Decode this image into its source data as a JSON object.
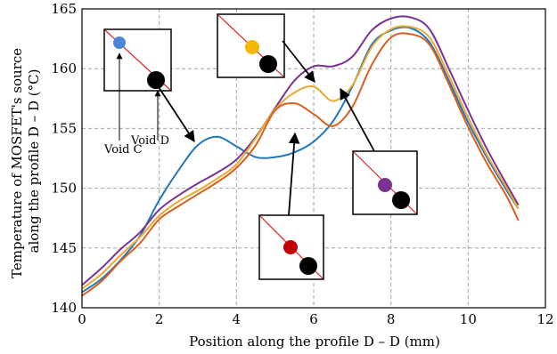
{
  "chart_data": {
    "type": "line",
    "title": "",
    "xlabel": "Position along the profile D – D (mm)",
    "ylabel_lines": [
      "Temperature of MOSFET's source",
      "along the profile D – D (°C)"
    ],
    "xlim": [
      0,
      12
    ],
    "ylim": [
      140,
      165
    ],
    "x_ticks": [
      "0",
      "2",
      "4",
      "6",
      "8",
      "10",
      "12"
    ],
    "y_ticks": [
      "140",
      "145",
      "150",
      "155",
      "160",
      "165"
    ],
    "grid": true,
    "series": [
      {
        "color": "#1f77c0",
        "points": [
          [
            0,
            141.3
          ],
          [
            0.5,
            142.4
          ],
          [
            1,
            144.0
          ],
          [
            1.5,
            146.0
          ],
          [
            2,
            149.0
          ],
          [
            2.5,
            151.5
          ],
          [
            3,
            153.6
          ],
          [
            3.5,
            154.3
          ],
          [
            4,
            153.5
          ],
          [
            4.5,
            152.6
          ],
          [
            5,
            152.6
          ],
          [
            5.5,
            153.0
          ],
          [
            6,
            153.9
          ],
          [
            6.5,
            155.6
          ],
          [
            7,
            158.5
          ],
          [
            7.5,
            162.0
          ],
          [
            8,
            163.2
          ],
          [
            8.5,
            163.4
          ],
          [
            9,
            162.2
          ],
          [
            9.5,
            159.0
          ],
          [
            10,
            155.5
          ],
          [
            10.5,
            152.5
          ],
          [
            11,
            149.8
          ],
          [
            11.3,
            148.3
          ]
        ]
      },
      {
        "color": "#7b3294",
        "points": [
          [
            0,
            141.9
          ],
          [
            0.5,
            143.3
          ],
          [
            1,
            144.9
          ],
          [
            1.5,
            146.3
          ],
          [
            2,
            148.2
          ],
          [
            2.5,
            149.4
          ],
          [
            3,
            150.4
          ],
          [
            3.5,
            151.3
          ],
          [
            4,
            152.4
          ],
          [
            4.5,
            154.3
          ],
          [
            5,
            156.7
          ],
          [
            5.5,
            159.0
          ],
          [
            6,
            160.2
          ],
          [
            6.5,
            160.2
          ],
          [
            7,
            161.0
          ],
          [
            7.5,
            163.2
          ],
          [
            8,
            164.2
          ],
          [
            8.5,
            164.3
          ],
          [
            9,
            163.3
          ],
          [
            9.5,
            160.0
          ],
          [
            10,
            156.5
          ],
          [
            10.5,
            153.2
          ],
          [
            11,
            150.3
          ],
          [
            11.3,
            148.6
          ]
        ]
      },
      {
        "color": "#e8a92e",
        "points": [
          [
            0,
            141.6
          ],
          [
            0.5,
            142.8
          ],
          [
            1,
            144.4
          ],
          [
            1.5,
            145.9
          ],
          [
            2,
            147.7
          ],
          [
            2.5,
            148.9
          ],
          [
            3,
            149.8
          ],
          [
            3.5,
            150.8
          ],
          [
            4,
            152.0
          ],
          [
            4.5,
            154.2
          ],
          [
            5,
            156.6
          ],
          [
            5.5,
            158.0
          ],
          [
            6,
            158.5
          ],
          [
            6.5,
            157.3
          ],
          [
            7,
            158.6
          ],
          [
            7.5,
            161.8
          ],
          [
            8,
            163.3
          ],
          [
            8.5,
            163.5
          ],
          [
            9,
            162.6
          ],
          [
            9.5,
            159.4
          ],
          [
            10,
            155.9
          ],
          [
            10.5,
            152.7
          ],
          [
            11,
            150.0
          ],
          [
            11.3,
            148.3
          ]
        ]
      },
      {
        "color": "#d95f1e",
        "points": [
          [
            0,
            141.0
          ],
          [
            0.5,
            142.2
          ],
          [
            1,
            143.9
          ],
          [
            1.5,
            145.4
          ],
          [
            2,
            147.4
          ],
          [
            2.5,
            148.5
          ],
          [
            3,
            149.5
          ],
          [
            3.5,
            150.5
          ],
          [
            4,
            151.7
          ],
          [
            4.5,
            153.6
          ],
          [
            5,
            156.5
          ],
          [
            5.5,
            157.1
          ],
          [
            6,
            156.2
          ],
          [
            6.5,
            155.2
          ],
          [
            7,
            156.8
          ],
          [
            7.5,
            160.3
          ],
          [
            8,
            162.6
          ],
          [
            8.5,
            162.9
          ],
          [
            9,
            162.0
          ],
          [
            9.5,
            158.7
          ],
          [
            10,
            155.1
          ],
          [
            10.5,
            152.0
          ],
          [
            11,
            149.3
          ],
          [
            11.3,
            147.3
          ]
        ]
      }
    ],
    "annotations": [
      {
        "text": "Void C"
      },
      {
        "text": "Void D"
      }
    ],
    "insets": [
      {
        "dots": [
          {
            "color": "#4a86d8",
            "size": "small"
          },
          {
            "color": "#000000",
            "size": "large"
          }
        ]
      },
      {
        "dots": [
          {
            "color": "#f5b800",
            "size": "small"
          },
          {
            "color": "#000000",
            "size": "large"
          }
        ]
      },
      {
        "dots": [
          {
            "color": "#7b3294",
            "size": "small"
          },
          {
            "color": "#000000",
            "size": "large"
          }
        ]
      },
      {
        "dots": [
          {
            "color": "#c00000",
            "size": "small"
          },
          {
            "color": "#000000",
            "size": "large"
          }
        ]
      }
    ]
  }
}
